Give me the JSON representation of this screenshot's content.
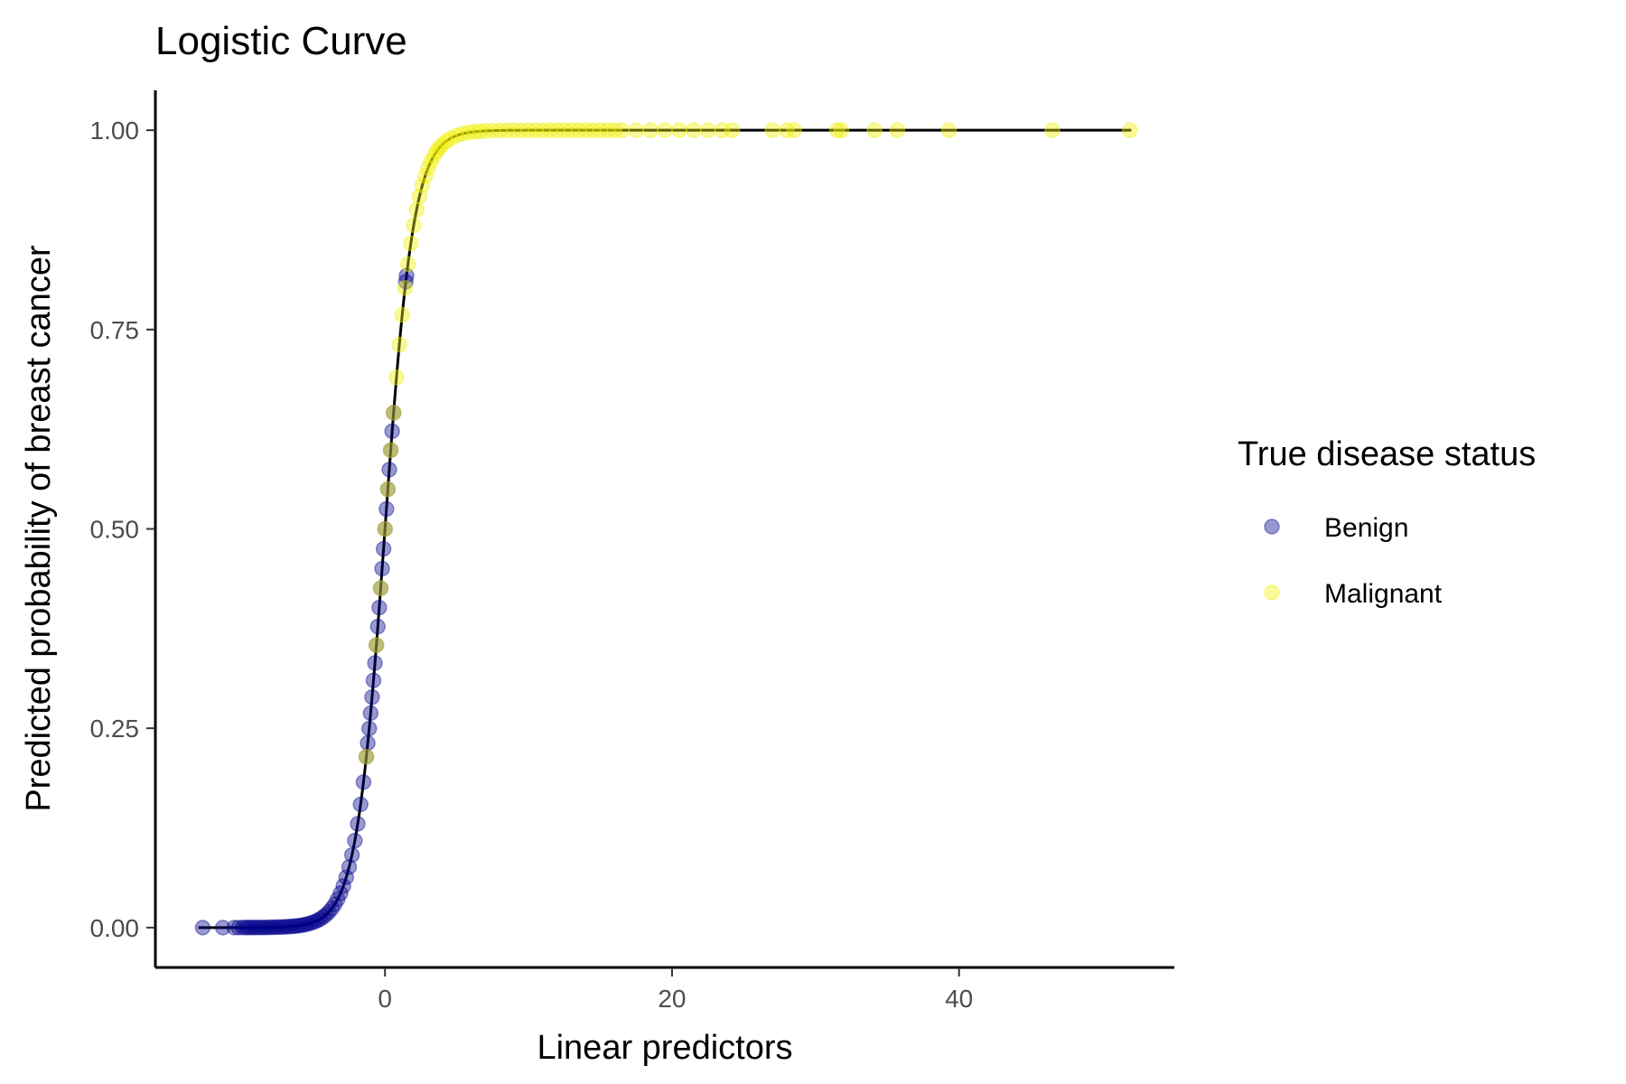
{
  "chart_data": {
    "type": "scatter",
    "title": "Logistic Curve",
    "xlabel": "Linear predictors",
    "ylabel": "Predicted probability of breast cancer",
    "xlim": [
      -16,
      55
    ],
    "ylim": [
      -0.05,
      1.05
    ],
    "x_ticks": [
      0,
      20,
      40
    ],
    "x_tick_labels": [
      "0",
      "20",
      "40"
    ],
    "y_ticks": [
      0,
      0.25,
      0.5,
      0.75,
      1
    ],
    "y_tick_labels": [
      "0.00",
      "0.25",
      "0.50",
      "0.75",
      "1.00"
    ],
    "grid": false,
    "legend": {
      "title": "True disease status",
      "position": "right",
      "entries": [
        {
          "label": "Benign",
          "color": "#00008b"
        },
        {
          "label": "Malignant",
          "color": "#f0f000"
        }
      ]
    },
    "curve": {
      "function": "logistic",
      "x_range": [
        -13,
        52
      ],
      "color": "#000000"
    },
    "series": [
      {
        "name": "Benign",
        "color": "#00008b",
        "opacity": 0.4,
        "x": [
          -12.7,
          -11.3,
          -10.5,
          -10.2,
          -9.9,
          -9.7,
          -9.5,
          -9.3,
          -9.1,
          -8.9,
          -8.7,
          -8.5,
          -8.3,
          -8.1,
          -7.9,
          -7.7,
          -7.5,
          -7.3,
          -7.1,
          -6.9,
          -6.7,
          -6.5,
          -6.3,
          -6.1,
          -5.9,
          -5.7,
          -5.5,
          -5.3,
          -5.1,
          -4.9,
          -4.7,
          -4.5,
          -4.3,
          -4.1,
          -3.9,
          -3.7,
          -3.5,
          -3.3,
          -3.1,
          -2.9,
          -2.7,
          -2.5,
          -2.3,
          -2.1,
          -1.9,
          -1.7,
          -1.5,
          -1.3,
          -1.2,
          -1.1,
          -1.0,
          -0.9,
          -0.8,
          -0.7,
          -0.6,
          -0.5,
          -0.4,
          -0.3,
          -0.2,
          -0.1,
          0.0,
          0.1,
          0.2,
          0.3,
          0.4,
          0.5,
          0.6,
          1.45,
          1.5
        ],
        "y": [
          0.0,
          0.0,
          0.0,
          0.0,
          0.0001,
          0.0001,
          0.0001,
          0.0001,
          0.0001,
          0.0001,
          0.0002,
          0.0002,
          0.0002,
          0.0003,
          0.0004,
          0.0005,
          0.0006,
          0.0007,
          0.0008,
          0.001,
          0.0012,
          0.0015,
          0.0018,
          0.0022,
          0.0027,
          0.0033,
          0.0041,
          0.005,
          0.0061,
          0.0074,
          0.009,
          0.011,
          0.0134,
          0.0163,
          0.0198,
          0.0241,
          0.0293,
          0.0356,
          0.0431,
          0.0522,
          0.063,
          0.0759,
          0.0911,
          0.1091,
          0.1301,
          0.1545,
          0.1824,
          0.2142,
          0.2315,
          0.2497,
          0.2689,
          0.2891,
          0.31,
          0.3318,
          0.3543,
          0.3775,
          0.4013,
          0.4256,
          0.4502,
          0.475,
          0.5,
          0.525,
          0.5498,
          0.5744,
          0.5987,
          0.6225,
          0.6457,
          0.81,
          0.8176
        ]
      },
      {
        "name": "Malignant",
        "color": "#f0f000",
        "opacity": 0.4,
        "x": [
          -1.3,
          -0.6,
          -0.3,
          0.0,
          0.2,
          0.4,
          0.6,
          0.8,
          1.0,
          1.2,
          1.4,
          1.6,
          1.8,
          2.0,
          2.2,
          2.4,
          2.6,
          2.8,
          3.0,
          3.2,
          3.4,
          3.6,
          3.8,
          4.0,
          4.3,
          4.6,
          5.0,
          5.4,
          5.8,
          6.2,
          6.6,
          7.0,
          7.5,
          8.0,
          8.5,
          9.0,
          9.5,
          10.0,
          10.5,
          11.0,
          11.5,
          12.0,
          12.5,
          13.0,
          13.5,
          14.0,
          14.5,
          15.0,
          15.5,
          16.0,
          16.5,
          17.5,
          18.5,
          19.5,
          20.5,
          21.5,
          22.5,
          23.5,
          24.2,
          27.0,
          28.0,
          28.5,
          31.5,
          31.8,
          34.1,
          35.7,
          39.3,
          46.5,
          51.9
        ],
        "y": [
          0.2142,
          0.3543,
          0.4256,
          0.5,
          0.5498,
          0.5987,
          0.6457,
          0.69,
          0.7311,
          0.7685,
          0.8022,
          0.832,
          0.8581,
          0.8808,
          0.9002,
          0.9168,
          0.9309,
          0.9427,
          0.9526,
          0.9608,
          0.9677,
          0.9734,
          0.9781,
          0.982,
          0.9866,
          0.9901,
          0.9933,
          0.9955,
          0.997,
          0.998,
          0.9986,
          0.9991,
          0.9994,
          0.9997,
          0.9998,
          0.9999,
          0.9999,
          1.0,
          1.0,
          1.0,
          1.0,
          1.0,
          1.0,
          1.0,
          1.0,
          1.0,
          1.0,
          1.0,
          1.0,
          1.0,
          1.0,
          1.0,
          1.0,
          1.0,
          1.0,
          1.0,
          1.0,
          1.0,
          1.0,
          1.0,
          1.0,
          1.0,
          1.0,
          1.0,
          1.0,
          1.0,
          1.0,
          1.0,
          1.0
        ]
      }
    ]
  }
}
